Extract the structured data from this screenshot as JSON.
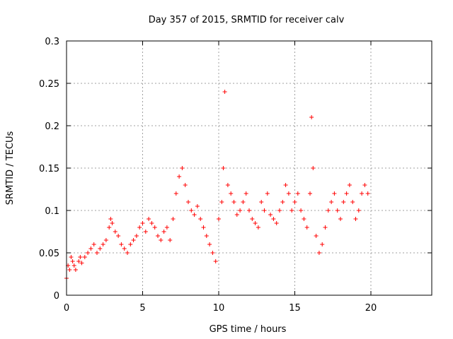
{
  "chart_data": {
    "type": "scatter",
    "title": "Day 357 of 2015, SRMTID for receiver calv",
    "xlabel": "GPS time / hours",
    "ylabel": "SRMTID / TECUs",
    "xlim": [
      0,
      24
    ],
    "ylim": [
      0,
      0.3
    ],
    "x_ticks": [
      "0",
      "5",
      "10",
      "15",
      "20"
    ],
    "y_ticks": [
      "0",
      "0.05",
      "0.1",
      "0.15",
      "0.2",
      "0.25",
      "0.3"
    ],
    "grid": true,
    "marker": "plus",
    "series": [
      {
        "color": "#ff0000",
        "x": [
          0.0,
          0.1,
          0.2,
          0.3,
          0.4,
          0.5,
          0.6,
          0.8,
          0.9,
          1.0,
          1.2,
          1.4,
          1.6,
          1.8,
          2.0,
          2.2,
          2.4,
          2.6,
          2.8,
          2.9,
          3.0,
          3.2,
          3.4,
          3.6,
          3.8,
          4.0,
          4.2,
          4.4,
          4.6,
          4.8,
          5.0,
          5.2,
          5.4,
          5.6,
          5.8,
          6.0,
          6.2,
          6.4,
          6.6,
          6.8,
          7.0,
          7.2,
          7.4,
          7.6,
          7.8,
          8.0,
          8.2,
          8.4,
          8.6,
          8.8,
          9.0,
          9.2,
          9.4,
          9.6,
          9.8,
          10.0,
          10.2,
          10.3,
          10.4,
          10.6,
          10.8,
          11.0,
          11.2,
          11.4,
          11.6,
          11.8,
          12.0,
          12.2,
          12.4,
          12.6,
          12.8,
          13.0,
          13.2,
          13.4,
          13.6,
          13.8,
          14.0,
          14.2,
          14.4,
          14.6,
          14.8,
          15.0,
          15.2,
          15.4,
          15.6,
          15.8,
          16.0,
          16.1,
          16.2,
          16.4,
          16.6,
          16.8,
          17.0,
          17.2,
          17.4,
          17.6,
          17.8,
          18.0,
          18.2,
          18.4,
          18.6,
          18.8,
          19.0,
          19.2,
          19.4,
          19.6,
          19.8
        ],
        "y": [
          0.02,
          0.035,
          0.03,
          0.045,
          0.04,
          0.035,
          0.03,
          0.04,
          0.045,
          0.038,
          0.045,
          0.05,
          0.055,
          0.06,
          0.05,
          0.055,
          0.06,
          0.065,
          0.08,
          0.09,
          0.085,
          0.075,
          0.07,
          0.06,
          0.055,
          0.05,
          0.06,
          0.065,
          0.07,
          0.08,
          0.085,
          0.075,
          0.09,
          0.085,
          0.08,
          0.07,
          0.065,
          0.075,
          0.08,
          0.065,
          0.09,
          0.12,
          0.14,
          0.15,
          0.13,
          0.11,
          0.1,
          0.095,
          0.105,
          0.09,
          0.08,
          0.07,
          0.06,
          0.05,
          0.04,
          0.09,
          0.11,
          0.15,
          0.24,
          0.13,
          0.12,
          0.11,
          0.095,
          0.1,
          0.11,
          0.12,
          0.1,
          0.09,
          0.085,
          0.08,
          0.11,
          0.1,
          0.12,
          0.095,
          0.09,
          0.085,
          0.1,
          0.11,
          0.13,
          0.12,
          0.1,
          0.11,
          0.12,
          0.1,
          0.09,
          0.08,
          0.12,
          0.21,
          0.15,
          0.07,
          0.05,
          0.06,
          0.08,
          0.1,
          0.11,
          0.12,
          0.1,
          0.09,
          0.11,
          0.12,
          0.13,
          0.11,
          0.09,
          0.1,
          0.12,
          0.13,
          0.12
        ]
      }
    ]
  }
}
